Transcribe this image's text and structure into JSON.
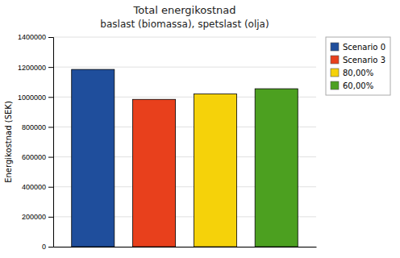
{
  "chart_data": {
    "type": "bar",
    "title": "Total energikostnad",
    "subtitle": "baslast (biomassa), spetslast (olja)",
    "categories": [
      "Scenario 0",
      "Scenario 3",
      "80,00%",
      "60,00%"
    ],
    "values": [
      1184000,
      984000,
      1020000,
      1055000
    ],
    "colors": [
      "#1F4E9C",
      "#E8401C",
      "#F5D20A",
      "#4CA020"
    ],
    "ylabel": "Energikostnad (SEK)",
    "ylim": [
      0,
      1400000
    ],
    "yticks": [
      0,
      200000,
      400000,
      600000,
      800000,
      1000000,
      1200000,
      1400000
    ],
    "grid": true,
    "legend": "right",
    "tick_labels": "y"
  }
}
